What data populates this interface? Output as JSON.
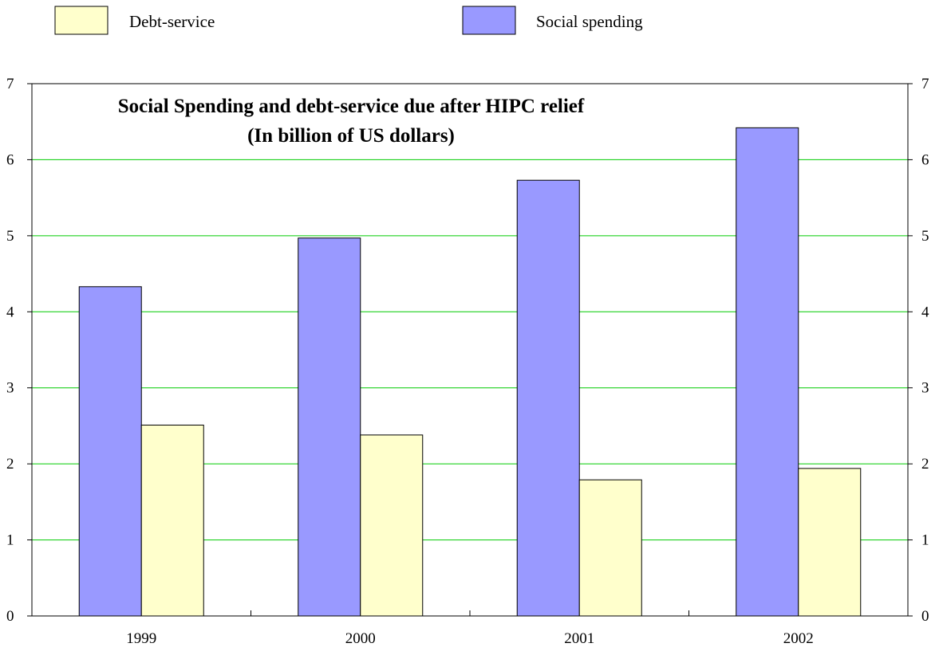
{
  "chart_data": {
    "type": "bar",
    "title": "Social Spending and debt-service due after HIPC relief",
    "subtitle": "(In billion of US dollars)",
    "xlabel": "",
    "ylabel": "",
    "categories": [
      "1999",
      "2000",
      "2001",
      "2002"
    ],
    "series": [
      {
        "name": "Social spending",
        "values": [
          4.33,
          4.97,
          5.73,
          6.42
        ],
        "color": "#9999ff"
      },
      {
        "name": "Debt-service",
        "values": [
          2.51,
          2.38,
          1.79,
          1.94
        ],
        "color": "#ffffcc"
      }
    ],
    "ylim": [
      0,
      7
    ],
    "yticks": [
      0,
      1,
      2,
      3,
      4,
      5,
      6,
      7
    ],
    "y2ticks": [
      0,
      1,
      2,
      3,
      4,
      5,
      6,
      7
    ],
    "grid": true,
    "grid_color": "#00cc00",
    "legend": [
      {
        "label": "Debt-service",
        "color": "#ffffcc"
      },
      {
        "label": "Social spending",
        "color": "#9999ff"
      }
    ],
    "legend_position": "top"
  }
}
